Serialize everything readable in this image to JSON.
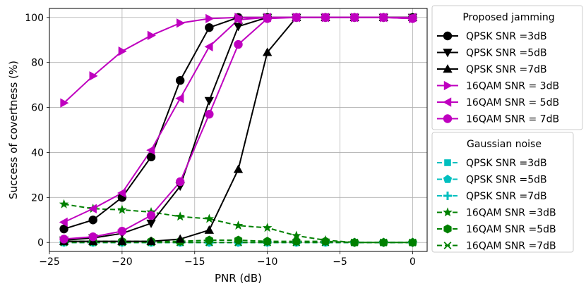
{
  "chart_data": {
    "type": "line",
    "title": "",
    "xlabel": "PNR (dB)",
    "ylabel": "Success of covertness (%)",
    "xlim": [
      -25,
      1
    ],
    "ylim": [
      -4,
      104
    ],
    "xticks": [
      -25,
      -20,
      -15,
      -10,
      -5,
      0
    ],
    "yticks": [
      0,
      20,
      40,
      60,
      80,
      100
    ],
    "xtick_labels": [
      "−25",
      "−20",
      "−15",
      "−10",
      "−5",
      "0"
    ],
    "ytick_labels": [
      "0",
      "20",
      "40",
      "60",
      "80",
      "100"
    ],
    "grid": true,
    "legend_position": "right",
    "x": [
      -24,
      -22,
      -20,
      -18,
      -16,
      -14,
      -12,
      -10,
      -8,
      -6,
      -4,
      -2,
      0
    ],
    "legend_groups": [
      {
        "title": "Proposed jamming",
        "series": [
          {
            "name": "QPSK SNR =3dB",
            "color": "#000000",
            "marker": "circle",
            "dash": "solid",
            "values": [
              6,
              10,
              20,
              38,
              72,
              95.5,
              100,
              100,
              100,
              100,
              100,
              100,
              100
            ]
          },
          {
            "name": "QPSK SNR =5dB",
            "color": "#000000",
            "marker": "triangle-down",
            "dash": "solid",
            "values": [
              1,
              2,
              4,
              8.5,
              25,
              63,
              96,
              100,
              100,
              100,
              100,
              100,
              100
            ]
          },
          {
            "name": "QPSK SNR =7dB",
            "color": "#000000",
            "marker": "triangle-up",
            "dash": "solid",
            "values": [
              0.5,
              0.5,
              0.5,
              0.5,
              1.5,
              5.5,
              32.5,
              84.5,
              100,
              100,
              100,
              100,
              100
            ]
          },
          {
            "name": "16QAM SNR = 3dB",
            "color": "#bf00bf",
            "marker": "triangle-right",
            "dash": "solid",
            "values": [
              62,
              74,
              85,
              92,
              97.5,
              99.5,
              100,
              100,
              100,
              100,
              100,
              100,
              99.5
            ]
          },
          {
            "name": "16QAM SNR = 5dB",
            "color": "#bf00bf",
            "marker": "triangle-left",
            "dash": "solid",
            "values": [
              9,
              15,
              22,
              41,
              64,
              87,
              99,
              100,
              100,
              100,
              100,
              100,
              100
            ]
          },
          {
            "name": "16QAM SNR = 7dB",
            "color": "#bf00bf",
            "marker": "circle",
            "dash": "solid",
            "values": [
              1.5,
              2.5,
              5,
              12,
              27,
              57,
              88,
              99.5,
              100,
              100,
              100,
              100,
              99.5
            ]
          }
        ]
      },
      {
        "title": "Gaussian noise",
        "series": [
          {
            "name": "QPSK SNR =3dB",
            "color": "#00bfbf",
            "marker": "square",
            "dash": "dashed",
            "values": [
              0,
              0,
              0,
              0,
              0,
              0,
              0,
              0,
              0,
              0,
              0,
              0,
              0
            ]
          },
          {
            "name": "QPSK SNR =5dB",
            "color": "#00bfbf",
            "marker": "pentagon",
            "dash": "dashed",
            "values": [
              0,
              0,
              0,
              0,
              0,
              0,
              0,
              0,
              0,
              0,
              0,
              0,
              0
            ]
          },
          {
            "name": "QPSK SNR =7dB",
            "color": "#00bfbf",
            "marker": "plus",
            "dash": "dashed",
            "values": [
              0,
              0,
              0,
              0,
              0,
              0,
              0,
              0,
              0,
              0,
              0,
              0,
              0
            ]
          },
          {
            "name": "16QAM SNR =3dB",
            "color": "#008000",
            "marker": "star",
            "dash": "dashed",
            "values": [
              17,
              15,
              14.5,
              13.5,
              11.5,
              10.5,
              7.5,
              6.5,
              3,
              1,
              0,
              0,
              0
            ]
          },
          {
            "name": "16QAM SNR =5dB",
            "color": "#008000",
            "marker": "hexagon",
            "dash": "dashed",
            "values": [
              0.5,
              0.5,
              0.5,
              0.5,
              0.5,
              1,
              1,
              0.5,
              0.5,
              0.5,
              0,
              0,
              0
            ]
          },
          {
            "name": "16QAM SNR =7dB",
            "color": "#008000",
            "marker": "x",
            "dash": "dashed",
            "values": [
              0,
              0,
              0,
              0,
              0,
              0,
              0,
              0,
              0,
              0,
              0,
              0,
              0
            ]
          }
        ]
      }
    ]
  }
}
